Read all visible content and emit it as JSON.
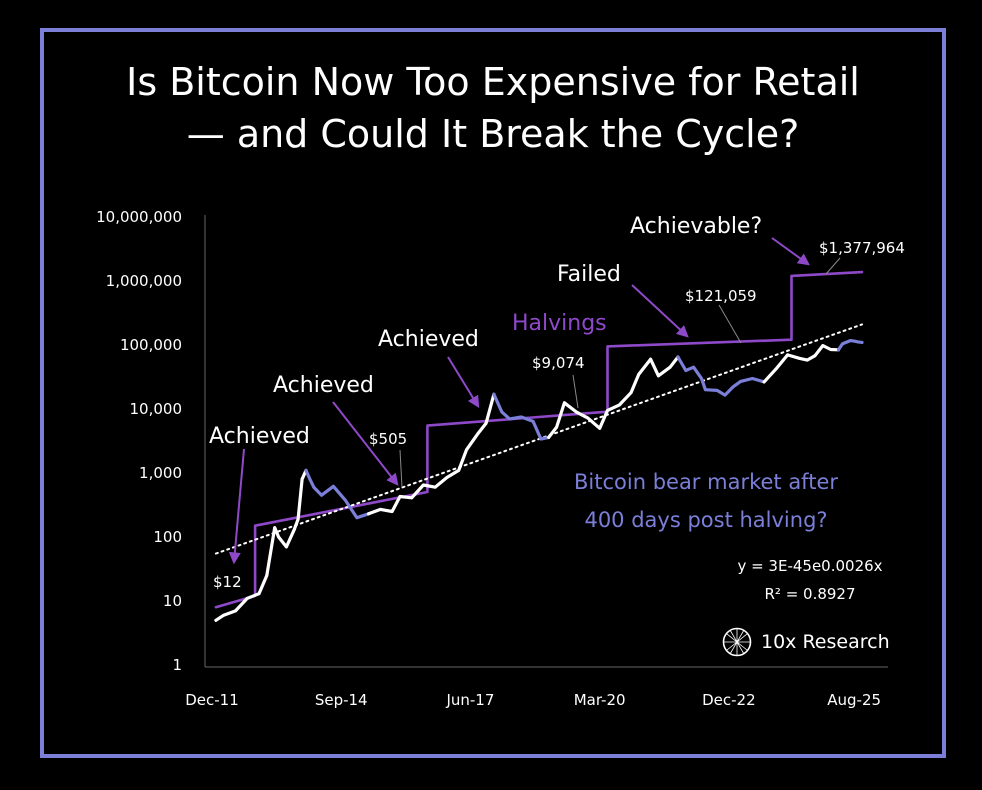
{
  "title": {
    "line1": "Is Bitcoin Now Too Expensive for Retail",
    "line2": "— and Could It Break the Cycle?"
  },
  "logo": {
    "text": "10x Research",
    "icon": "globe-icon"
  },
  "colors": {
    "background": "#000000",
    "frame": "#7b7fd8",
    "price": "#ffffff",
    "bear": "#7b7fd8",
    "halving": "#8e49c9",
    "trend": "#ffffff"
  },
  "chart_data": {
    "type": "line",
    "yscale": "log",
    "ylim": [
      1,
      10000000
    ],
    "xlim": [
      "2011-12",
      "2025-10"
    ],
    "y_ticks": [
      "1",
      "10",
      "100",
      "1,000",
      "10,000",
      "100,000",
      "1,000,000",
      "10,000,000"
    ],
    "x_ticks": [
      "Dec-11",
      "Sep-14",
      "Jun-17",
      "Mar-20",
      "Dec-22",
      "Aug-25"
    ],
    "grid": false,
    "series": [
      {
        "name": "",
        "kind": "price",
        "points": [
          [
            "2012-01",
            5
          ],
          [
            "2012-03",
            6
          ],
          [
            "2012-06",
            7
          ],
          [
            "2012-09",
            11
          ],
          [
            "2012-12",
            13
          ],
          [
            "2013-02",
            25
          ],
          [
            "2013-04",
            140
          ],
          [
            "2013-05",
            100
          ],
          [
            "2013-07",
            70
          ],
          [
            "2013-09",
            130
          ],
          [
            "2013-10",
            190
          ],
          [
            "2013-11",
            800
          ],
          [
            "2013-12",
            1100
          ]
        ]
      },
      {
        "name": "",
        "kind": "bear",
        "points": [
          [
            "2013-12",
            1100
          ],
          [
            "2014-01",
            800
          ],
          [
            "2014-02",
            600
          ],
          [
            "2014-04",
            450
          ],
          [
            "2014-07",
            620
          ],
          [
            "2014-10",
            380
          ],
          [
            "2015-01",
            200
          ],
          [
            "2015-04",
            230
          ]
        ]
      },
      {
        "name": "",
        "kind": "price",
        "points": [
          [
            "2015-04",
            230
          ],
          [
            "2015-07",
            270
          ],
          [
            "2015-10",
            250
          ],
          [
            "2015-12",
            430
          ],
          [
            "2016-03",
            410
          ],
          [
            "2016-06",
            650
          ],
          [
            "2016-09",
            600
          ],
          [
            "2016-12",
            850
          ],
          [
            "2017-03",
            1100
          ],
          [
            "2017-05",
            2300
          ],
          [
            "2017-08",
            4200
          ],
          [
            "2017-10",
            6000
          ],
          [
            "2017-12",
            17000
          ]
        ]
      },
      {
        "name": "",
        "kind": "bear",
        "points": [
          [
            "2017-12",
            17000
          ],
          [
            "2018-02",
            9000
          ],
          [
            "2018-04",
            7000
          ],
          [
            "2018-07",
            7500
          ],
          [
            "2018-10",
            6400
          ],
          [
            "2018-12",
            3400
          ],
          [
            "2019-02",
            3600
          ]
        ]
      },
      {
        "name": "",
        "kind": "price",
        "points": [
          [
            "2019-02",
            3600
          ],
          [
            "2019-04",
            5200
          ],
          [
            "2019-06",
            12500
          ],
          [
            "2019-09",
            9000
          ],
          [
            "2019-12",
            7200
          ],
          [
            "2020-03",
            5000
          ],
          [
            "2020-05",
            9500
          ],
          [
            "2020-08",
            11500
          ],
          [
            "2020-11",
            18000
          ],
          [
            "2021-01",
            35000
          ],
          [
            "2021-04",
            60000
          ],
          [
            "2021-06",
            33000
          ],
          [
            "2021-09",
            45000
          ],
          [
            "2021-11",
            65000
          ]
        ]
      },
      {
        "name": "",
        "kind": "bear",
        "points": [
          [
            "2021-11",
            65000
          ],
          [
            "2022-01",
            40000
          ],
          [
            "2022-03",
            45000
          ],
          [
            "2022-05",
            30000
          ],
          [
            "2022-06",
            20000
          ],
          [
            "2022-09",
            19500
          ],
          [
            "2022-11",
            16500
          ],
          [
            "2023-01",
            22000
          ],
          [
            "2023-03",
            27000
          ],
          [
            "2023-06",
            30000
          ],
          [
            "2023-09",
            26500
          ]
        ]
      },
      {
        "name": "",
        "kind": "price",
        "points": [
          [
            "2023-09",
            26500
          ],
          [
            "2023-12",
            42000
          ],
          [
            "2024-03",
            70000
          ],
          [
            "2024-06",
            62000
          ],
          [
            "2024-08",
            58000
          ],
          [
            "2024-10",
            68000
          ],
          [
            "2024-12",
            98000
          ],
          [
            "2025-02",
            85000
          ],
          [
            "2025-04",
            84000
          ]
        ]
      },
      {
        "name": "",
        "kind": "bear",
        "points": [
          [
            "2025-04",
            84000
          ],
          [
            "2025-05",
            104000
          ],
          [
            "2025-07",
            117000
          ],
          [
            "2025-08",
            115000
          ],
          [
            "2025-09",
            112000
          ],
          [
            "2025-10",
            110000
          ]
        ]
      },
      {
        "name": "",
        "kind": "halving",
        "points": [
          [
            "2012-01",
            8
          ],
          [
            "2012-11",
            12
          ],
          [
            "2012-11",
            150
          ],
          [
            "2016-07",
            505
          ],
          [
            "2016-07",
            5500
          ],
          [
            "2020-05",
            9074
          ],
          [
            "2020-05",
            95000
          ],
          [
            "2024-04",
            121059
          ],
          [
            "2024-04",
            1200000
          ],
          [
            "2025-10",
            1377964
          ]
        ]
      },
      {
        "name": "",
        "kind": "trend",
        "points": [
          [
            "2012-01",
            55
          ],
          [
            "2025-10",
            210000
          ]
        ]
      }
    ],
    "annotations": [
      {
        "text": "Achieved",
        "at": [
          "2012-03",
          450
        ]
      },
      {
        "text": "Achieved",
        "at": [
          "2014-03",
          3800
        ]
      },
      {
        "text": "Achieved",
        "at": [
          "2016-09",
          25000
        ]
      },
      {
        "text": "Failed",
        "at": [
          "2020-11",
          750000
        ]
      },
      {
        "text": "Achievable?",
        "at": [
          "2023-03",
          3000000
        ]
      },
      {
        "text": "Halvings",
        "at": [
          "2019-11",
          150000
        ]
      },
      {
        "text": "$12",
        "at": [
          "2012-01",
          18
        ]
      },
      {
        "text": "$505",
        "at": [
          "2016-01",
          1200
        ]
      },
      {
        "text": "$9,074",
        "at": [
          "2019-05",
          100000
        ]
      },
      {
        "text": "$121,059",
        "at": [
          "2022-07",
          500000
        ]
      },
      {
        "text": "$1,377,964",
        "at": [
          "2024-11",
          4000000
        ]
      }
    ],
    "note": "Bitcoin bear market after 400 days post halving?",
    "note_lines": [
      "Bitcoin bear market after",
      "400 days post halving?"
    ],
    "equation": [
      "y = 3E-45e0.0026x",
      "R² = 0.8927"
    ]
  }
}
